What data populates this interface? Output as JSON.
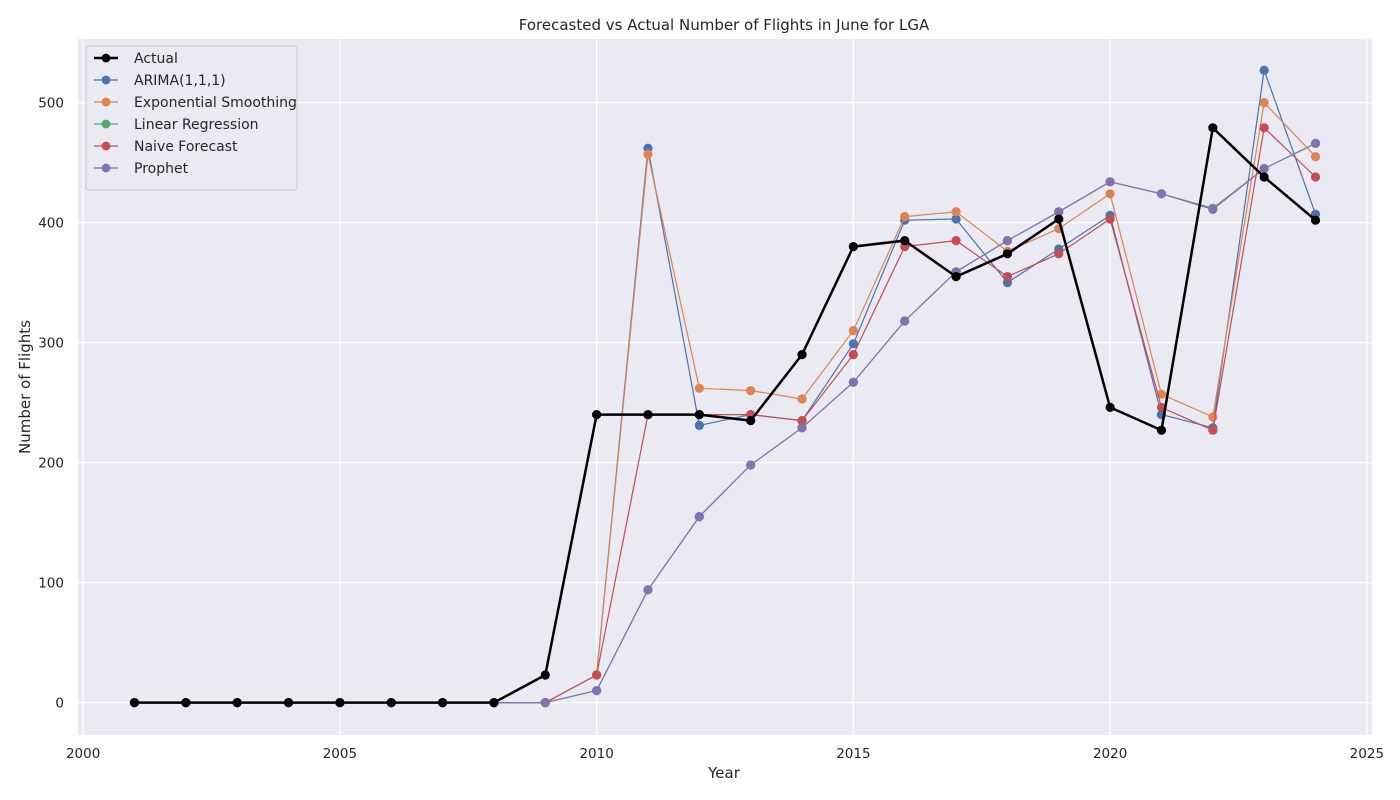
{
  "chart_data": {
    "type": "line",
    "title": "Forecasted vs Actual Number of Flights in June for LGA",
    "xlabel": "Year",
    "ylabel": "Number of Flights",
    "xlim": [
      1999.9,
      2025.1
    ],
    "ylim": [
      -27,
      553
    ],
    "xticks": [
      2000,
      2005,
      2010,
      2015,
      2020,
      2025
    ],
    "yticks": [
      0,
      100,
      200,
      300,
      400,
      500
    ],
    "grid": true,
    "legend_position": "top-left",
    "x": [
      2001,
      2002,
      2003,
      2004,
      2005,
      2006,
      2007,
      2008,
      2009,
      2010,
      2011,
      2012,
      2013,
      2014,
      2015,
      2016,
      2017,
      2018,
      2019,
      2020,
      2021,
      2022,
      2023,
      2024
    ],
    "series": [
      {
        "name": "Actual",
        "color": "#000000",
        "width": 2.5,
        "values": [
          0,
          0,
          0,
          0,
          0,
          0,
          0,
          0,
          23,
          240,
          240,
          240,
          235,
          290,
          380,
          385,
          355,
          374,
          403,
          246,
          227,
          479,
          438,
          402
        ]
      },
      {
        "name": "ARIMA(1,1,1)",
        "color": "#4c72b0",
        "width": 1.2,
        "values": [
          0,
          0,
          0,
          0,
          0,
          0,
          0,
          0,
          0,
          23,
          462,
          231,
          240,
          235,
          299,
          402,
          403,
          350,
          378,
          406,
          240,
          229,
          527,
          407
        ]
      },
      {
        "name": "Exponential Smoothing",
        "color": "#dd8452",
        "width": 1.2,
        "values": [
          0,
          0,
          0,
          0,
          0,
          0,
          0,
          0,
          0,
          23,
          457,
          262,
          260,
          253,
          310,
          405,
          409,
          376,
          395,
          424,
          257,
          238,
          500,
          455
        ]
      },
      {
        "name": "Linear Regression",
        "color": "#55a868",
        "width": 1.2,
        "values": [
          0,
          0,
          0,
          0,
          0,
          0,
          0,
          0,
          0,
          10,
          94,
          155,
          198,
          229,
          267,
          318,
          359,
          385,
          409,
          434,
          424,
          412,
          445,
          466
        ]
      },
      {
        "name": "Naive Forecast",
        "color": "#c44e52",
        "width": 1.2,
        "values": [
          0,
          0,
          0,
          0,
          0,
          0,
          0,
          0,
          0,
          23,
          240,
          240,
          240,
          235,
          290,
          380,
          385,
          355,
          374,
          403,
          246,
          227,
          479,
          438
        ]
      },
      {
        "name": "Prophet",
        "color": "#8172b3",
        "width": 1.2,
        "values": [
          0,
          0,
          0,
          0,
          0,
          0,
          0,
          0,
          0,
          10,
          94,
          155,
          198,
          229,
          267,
          318,
          359,
          385,
          409,
          434,
          424,
          411,
          445,
          466
        ]
      }
    ]
  }
}
